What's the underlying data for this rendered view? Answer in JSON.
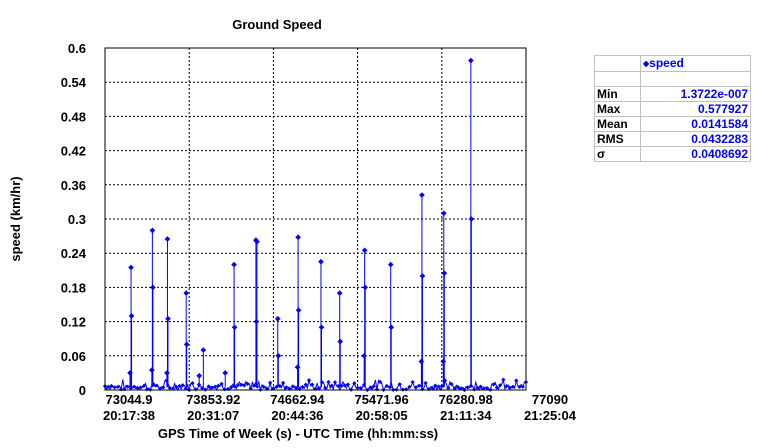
{
  "chart_data": {
    "type": "scatter",
    "title": "Ground Speed",
    "ylabel": "speed (km/hr)",
    "xlabel": "GPS Time of Week (s) - UTC Time (hh:mm:ss)",
    "xlim": [
      73044.9,
      77090
    ],
    "ylim": [
      0,
      0.6
    ],
    "grid": true,
    "y_ticks": [
      "0",
      "0.06",
      "0.12",
      "0.18",
      "0.24",
      "0.3",
      "0.36",
      "0.42",
      "0.48",
      "0.54",
      "0.6"
    ],
    "x_ticks": [
      {
        "gps": "73044.9",
        "utc": "20:17:38"
      },
      {
        "gps": "73853.92",
        "utc": "20:31:07"
      },
      {
        "gps": "74662.94",
        "utc": "20:44:36"
      },
      {
        "gps": "75471.96",
        "utc": "20:58:05"
      },
      {
        "gps": "76280.98",
        "utc": "21:11:34"
      },
      {
        "gps": "77090",
        "utc": "21:25:04"
      }
    ],
    "series": [
      {
        "name": "speed",
        "color": "#0000ff",
        "peaks": [
          {
            "x": 73295,
            "y": 0.215
          },
          {
            "x": 73300,
            "y": 0.13
          },
          {
            "x": 73285,
            "y": 0.03
          },
          {
            "x": 73500,
            "y": 0.28
          },
          {
            "x": 73505,
            "y": 0.18
          },
          {
            "x": 73495,
            "y": 0.035
          },
          {
            "x": 73645,
            "y": 0.265
          },
          {
            "x": 73650,
            "y": 0.125
          },
          {
            "x": 73640,
            "y": 0.03
          },
          {
            "x": 73825,
            "y": 0.17
          },
          {
            "x": 73830,
            "y": 0.08
          },
          {
            "x": 73990,
            "y": 0.07
          },
          {
            "x": 73950,
            "y": 0.025
          },
          {
            "x": 74200,
            "y": 0.03
          },
          {
            "x": 74285,
            "y": 0.22
          },
          {
            "x": 74290,
            "y": 0.11
          },
          {
            "x": 74495,
            "y": 0.263
          },
          {
            "x": 74505,
            "y": 0.26
          },
          {
            "x": 74500,
            "y": 0.12
          },
          {
            "x": 74705,
            "y": 0.125
          },
          {
            "x": 74710,
            "y": 0.06
          },
          {
            "x": 74900,
            "y": 0.268
          },
          {
            "x": 74905,
            "y": 0.14
          },
          {
            "x": 74895,
            "y": 0.04
          },
          {
            "x": 75120,
            "y": 0.225
          },
          {
            "x": 75125,
            "y": 0.11
          },
          {
            "x": 75300,
            "y": 0.17
          },
          {
            "x": 75305,
            "y": 0.085
          },
          {
            "x": 75540,
            "y": 0.245
          },
          {
            "x": 75545,
            "y": 0.18
          },
          {
            "x": 75535,
            "y": 0.06
          },
          {
            "x": 75790,
            "y": 0.22
          },
          {
            "x": 75795,
            "y": 0.11
          },
          {
            "x": 76090,
            "y": 0.342
          },
          {
            "x": 76095,
            "y": 0.2
          },
          {
            "x": 76085,
            "y": 0.05
          },
          {
            "x": 76300,
            "y": 0.31
          },
          {
            "x": 76305,
            "y": 0.205
          },
          {
            "x": 76295,
            "y": 0.05
          },
          {
            "x": 76560,
            "y": 0.578
          },
          {
            "x": 76565,
            "y": 0.3
          }
        ],
        "baseline_max": 0.02
      }
    ]
  },
  "stats_table": {
    "header": "speed",
    "legend_marker": "◆",
    "rows": [
      {
        "label": "Min",
        "value": "1.3722e-007"
      },
      {
        "label": "Max",
        "value": "0.577927"
      },
      {
        "label": "Mean",
        "value": "0.0141584"
      },
      {
        "label": "RMS",
        "value": "0.0432283"
      },
      {
        "label": "σ",
        "value": "0.0408692"
      }
    ]
  }
}
